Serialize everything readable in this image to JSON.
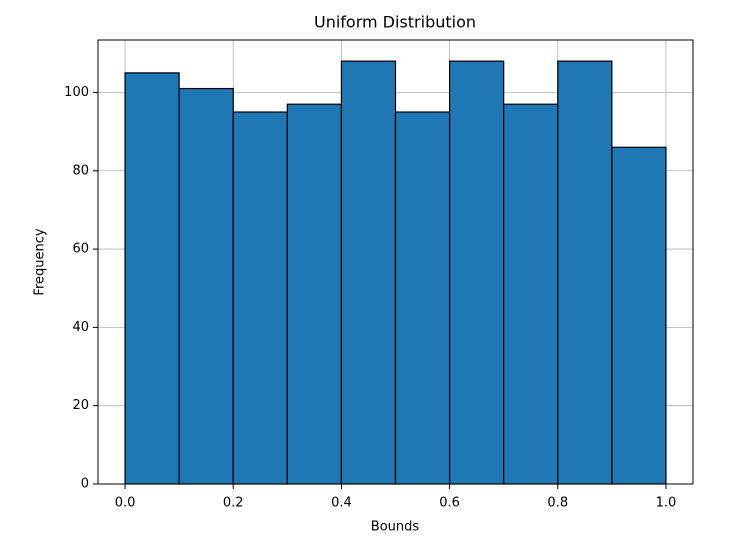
{
  "chart_data": {
    "type": "histogram",
    "title": "Uniform Distribution",
    "x_label": "Bounds",
    "y_label": "Frequency",
    "bins": [
      0,
      0.1,
      0.2,
      0.3,
      0.4,
      0.5,
      0.6,
      0.7,
      0.8,
      0.9,
      1.0
    ],
    "values": [
      105,
      101,
      95,
      97,
      108,
      95,
      108,
      97,
      108,
      86
    ],
    "color": "#1f77b4",
    "edgecolor": "#000000",
    "xlim": [
      -0.05,
      1.05
    ],
    "ylim": [
      0,
      113.4
    ],
    "xticks": [
      {
        "value": 0,
        "label": "0.0"
      },
      {
        "value": 0.2,
        "label": "0.2"
      },
      {
        "value": 0.4,
        "label": "0.4"
      },
      {
        "value": 0.6,
        "label": "0.6"
      },
      {
        "value": 0.8,
        "label": "0.8"
      },
      {
        "value": 1.0,
        "label": "1.0"
      }
    ],
    "yticks": [
      0,
      20,
      40,
      60,
      80,
      100
    ],
    "grid": true
  }
}
